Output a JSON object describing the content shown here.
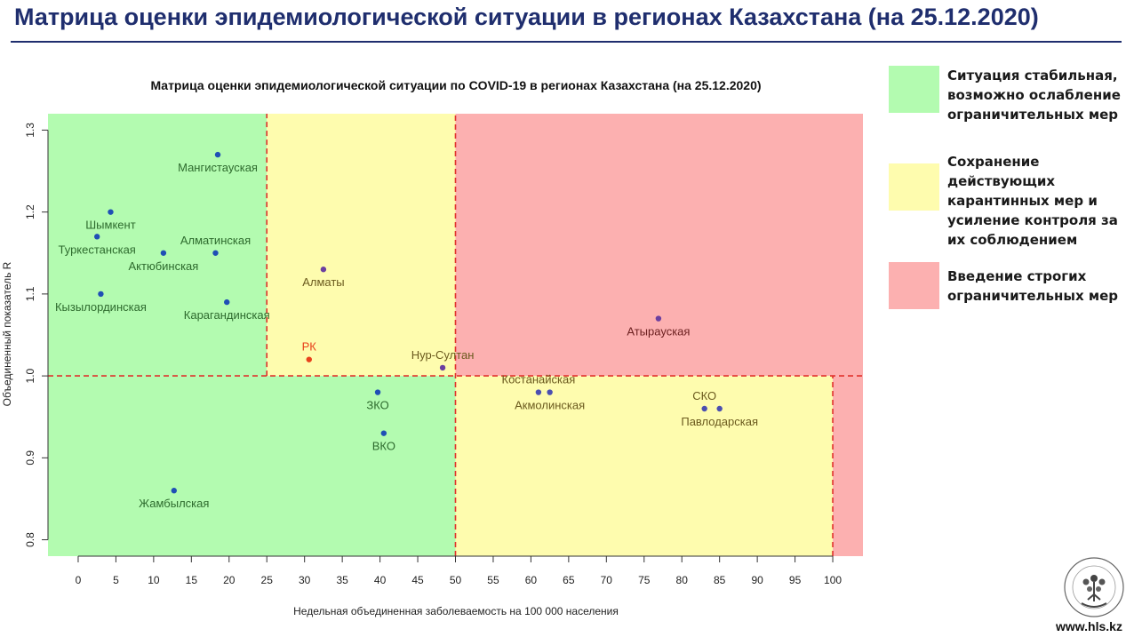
{
  "page": {
    "title": "Матрица оценки эпидемиологической ситуации в регионах Казахстана (на 25.12.2020)"
  },
  "legend": [
    {
      "color": "#b3fbb0",
      "text": "Ситуация стабильная, возможно ослабление ограничительных мер"
    },
    {
      "color": "#fefcae",
      "text": "Сохранение действующих карантинных мер и усиление контроля за их соблюдением"
    },
    {
      "color": "#fcb0b0",
      "text": "Введение строгих ограничительных мер"
    }
  ],
  "footer": {
    "url": "www.hls.kz"
  },
  "chart_data": {
    "type": "scatter",
    "title": "Матрица оценки эпидемиологической ситуации по COVID-19 в регионах Казахстана (на 25.12.2020)",
    "xlabel": "Недельная объединенная заболеваемость на 100 000 населения",
    "ylabel": "Объединенный показатель R",
    "xlim": [
      -4,
      104
    ],
    "ylim": [
      0.78,
      1.32
    ],
    "xticks": [
      0,
      5,
      10,
      15,
      20,
      25,
      30,
      35,
      40,
      45,
      50,
      55,
      60,
      65,
      70,
      75,
      80,
      85,
      90,
      95,
      100
    ],
    "xtick_labels": [
      "0",
      "5",
      "10",
      "15",
      "20",
      "25",
      "30",
      "35",
      "40",
      "45",
      "50",
      "55",
      "60",
      "65",
      "70",
      "75",
      "80",
      "85",
      "90",
      "95",
      "100"
    ],
    "yticks": [
      0.8,
      0.9,
      1.0,
      1.1,
      1.2,
      1.3
    ],
    "ytick_labels": [
      "0.8",
      "0.9",
      "1.0",
      "1.1",
      "1.2",
      "1.3"
    ],
    "zones": [
      {
        "x0": -4,
        "x1": 25,
        "y0": 1.0,
        "y1": 1.32,
        "color": "#b3fbb0"
      },
      {
        "x0": 25,
        "x1": 50,
        "y0": 1.0,
        "y1": 1.32,
        "color": "#fefcae"
      },
      {
        "x0": 50,
        "x1": 104,
        "y0": 1.0,
        "y1": 1.32,
        "color": "#fcb0b0"
      },
      {
        "x0": -4,
        "x1": 50,
        "y0": 0.78,
        "y1": 1.0,
        "color": "#b3fbb0"
      },
      {
        "x0": 50,
        "x1": 100,
        "y0": 0.78,
        "y1": 1.0,
        "color": "#fefcae"
      },
      {
        "x0": 100,
        "x1": 104,
        "y0": 0.78,
        "y1": 1.0,
        "color": "#fcb0b0"
      }
    ],
    "threshold_lines": [
      {
        "x0": 25,
        "y0": 1.0,
        "x1": 25,
        "y1": 1.32
      },
      {
        "x0": 50,
        "y0": 0.78,
        "x1": 50,
        "y1": 1.32
      },
      {
        "x0": 100,
        "y0": 0.78,
        "x1": 100,
        "y1": 1.0
      },
      {
        "x0": -4,
        "y0": 1.0,
        "x1": 104,
        "y1": 1.0
      }
    ],
    "threshold_color": "#e0302a",
    "points": [
      {
        "label": "Мангистауская",
        "x": 18.5,
        "y": 1.27,
        "color": "#1f4fb5",
        "label_color": "#2e6b2e",
        "label_pos": "below"
      },
      {
        "label": "Шымкент",
        "x": 4.3,
        "y": 1.2,
        "color": "#1f4fb5",
        "label_color": "#2e6b2e",
        "label_pos": "below"
      },
      {
        "label": "Туркестанская",
        "x": 2.5,
        "y": 1.17,
        "color": "#1f4fb5",
        "label_color": "#2e6b2e",
        "label_pos": "below"
      },
      {
        "label": "Актюбинская",
        "x": 11.3,
        "y": 1.15,
        "color": "#1f4fb5",
        "label_color": "#2e6b2e",
        "label_pos": "below"
      },
      {
        "label": "Алматинская",
        "x": 18.2,
        "y": 1.15,
        "color": "#1f4fb5",
        "label_color": "#2e6b2e",
        "label_pos": "above"
      },
      {
        "label": "Кызылординская",
        "x": 3.0,
        "y": 1.1,
        "color": "#1f4fb5",
        "label_color": "#2e6b2e",
        "label_pos": "below"
      },
      {
        "label": "Карагандинская",
        "x": 19.7,
        "y": 1.09,
        "color": "#1f4fb5",
        "label_color": "#2e6b2e",
        "label_pos": "below"
      },
      {
        "label": "Алматы",
        "x": 32.5,
        "y": 1.13,
        "color": "#6b3fa0",
        "label_color": "#6b5a1e",
        "label_pos": "below"
      },
      {
        "label": "РК",
        "x": 30.6,
        "y": 1.02,
        "color": "#e8421c",
        "label_color": "#e8421c",
        "label_pos": "above"
      },
      {
        "label": "Нур-Султан",
        "x": 48.3,
        "y": 1.01,
        "color": "#6b3fa0",
        "label_color": "#6b5a1e",
        "label_pos": "above"
      },
      {
        "label": "ЗКО",
        "x": 39.7,
        "y": 0.98,
        "color": "#1f4fb5",
        "label_color": "#2e6b2e",
        "label_pos": "below"
      },
      {
        "label": "ВКО",
        "x": 40.5,
        "y": 0.93,
        "color": "#1f4fb5",
        "label_color": "#2e6b2e",
        "label_pos": "below"
      },
      {
        "label": "Жамбылская",
        "x": 12.7,
        "y": 0.86,
        "color": "#1f4fb5",
        "label_color": "#2e6b2e",
        "label_pos": "below"
      },
      {
        "label": "Костанайская",
        "x": 61.0,
        "y": 0.98,
        "color": "#4b4fb0",
        "label_color": "#6b5a1e",
        "label_pos": "above"
      },
      {
        "label": "Акмолинская",
        "x": 62.5,
        "y": 0.98,
        "color": "#4b4fb0",
        "label_color": "#6b5a1e",
        "label_pos": "below"
      },
      {
        "label": "СКО",
        "x": 83.0,
        "y": 0.96,
        "color": "#4b4fb0",
        "label_color": "#6b5a1e",
        "label_pos": "above"
      },
      {
        "label": "Павлодарская",
        "x": 85.0,
        "y": 0.96,
        "color": "#4b4fb0",
        "label_color": "#6b5a1e",
        "label_pos": "below"
      },
      {
        "label": "Атырауская",
        "x": 76.9,
        "y": 1.07,
        "color": "#6b3fa0",
        "label_color": "#6b1f1f",
        "label_pos": "below"
      }
    ]
  }
}
